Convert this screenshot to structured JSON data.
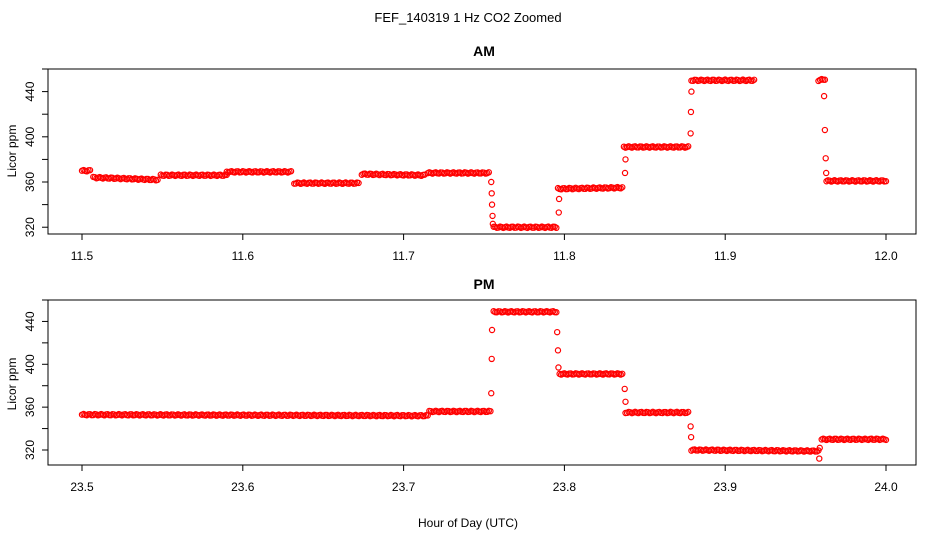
{
  "figure": {
    "title": "FEF_140319  1 Hz CO2 Zoomed",
    "xlabel": "Hour of Day (UTC)",
    "marker_color": "#ff0000"
  },
  "chart_data": [
    {
      "type": "scatter",
      "title": "AM",
      "xlabel": "",
      "ylabel": "Licor ppm",
      "xlim": [
        11.5,
        12.0
      ],
      "ylim": [
        314,
        460
      ],
      "xticks": [
        "11.5",
        "11.6",
        "11.7",
        "11.8",
        "11.9",
        "12.0"
      ],
      "yticks": [
        "320",
        "360",
        "400",
        "440"
      ],
      "grid": false,
      "segments": [
        {
          "x": [
            11.5,
            11.505
          ],
          "y": [
            370,
            370
          ]
        },
        {
          "x": [
            11.507,
            11.547
          ],
          "y": [
            364,
            362
          ]
        },
        {
          "x": [
            11.549,
            11.59
          ],
          "y": [
            366,
            366
          ]
        },
        {
          "x": [
            11.59,
            11.63
          ],
          "y": [
            369,
            369
          ]
        },
        {
          "x": [
            11.632,
            11.672
          ],
          "y": [
            359,
            359
          ]
        },
        {
          "x": [
            11.674,
            11.713
          ],
          "y": [
            367,
            366
          ]
        },
        {
          "x": [
            11.715,
            11.753
          ],
          "y": [
            368,
            368
          ]
        },
        {
          "x": [
            11.756,
            11.795
          ],
          "y": [
            320,
            320
          ]
        },
        {
          "x": [
            11.796,
            11.836
          ],
          "y": [
            354,
            355
          ]
        },
        {
          "x": [
            11.837,
            11.877
          ],
          "y": [
            391,
            391
          ]
        },
        {
          "x": [
            11.879,
            11.918
          ],
          "y": [
            450,
            450
          ]
        },
        {
          "x": [
            11.958,
            11.962
          ],
          "y": [
            450,
            451
          ]
        },
        {
          "x": [
            11.963,
            12.0
          ],
          "y": [
            361,
            361
          ]
        }
      ],
      "points": [
        [
          11.7545,
          360
        ],
        [
          11.7548,
          350
        ],
        [
          11.755,
          340
        ],
        [
          11.7553,
          330
        ],
        [
          11.7555,
          323
        ],
        [
          11.7965,
          333
        ],
        [
          11.7967,
          345
        ],
        [
          11.8377,
          368
        ],
        [
          11.838,
          380
        ],
        [
          11.8785,
          403
        ],
        [
          11.8787,
          422
        ],
        [
          11.879,
          440
        ],
        [
          11.9615,
          436
        ],
        [
          11.962,
          406
        ],
        [
          11.9625,
          381
        ],
        [
          11.9628,
          368
        ]
      ]
    },
    {
      "type": "scatter",
      "title": "PM",
      "xlabel": "",
      "ylabel": "Licor ppm",
      "xlim": [
        23.5,
        24.0
      ],
      "ylim": [
        306,
        460
      ],
      "xticks": [
        "23.5",
        "23.6",
        "23.7",
        "23.8",
        "23.9",
        "24.0"
      ],
      "yticks": [
        "320",
        "360",
        "400",
        "440"
      ],
      "grid": false,
      "segments": [
        {
          "x": [
            23.5,
            23.715
          ],
          "y": [
            353,
            352
          ]
        },
        {
          "x": [
            23.716,
            23.754
          ],
          "y": [
            356,
            356
          ]
        },
        {
          "x": [
            23.756,
            23.795
          ],
          "y": [
            449,
            449
          ]
        },
        {
          "x": [
            23.797,
            23.836
          ],
          "y": [
            391,
            391
          ]
        },
        {
          "x": [
            23.838,
            23.877
          ],
          "y": [
            355,
            355
          ]
        },
        {
          "x": [
            23.879,
            23.958
          ],
          "y": [
            320,
            319
          ]
        },
        {
          "x": [
            23.96,
            24.0
          ],
          "y": [
            330,
            330
          ]
        }
      ],
      "points": [
        [
          23.7545,
          373
        ],
        [
          23.7548,
          405
        ],
        [
          23.755,
          432
        ],
        [
          23.7955,
          430
        ],
        [
          23.796,
          413
        ],
        [
          23.7963,
          397
        ],
        [
          23.8375,
          377
        ],
        [
          23.838,
          365
        ],
        [
          23.8785,
          342
        ],
        [
          23.8788,
          332
        ],
        [
          23.9585,
          312
        ],
        [
          23.9588,
          322
        ]
      ]
    }
  ]
}
